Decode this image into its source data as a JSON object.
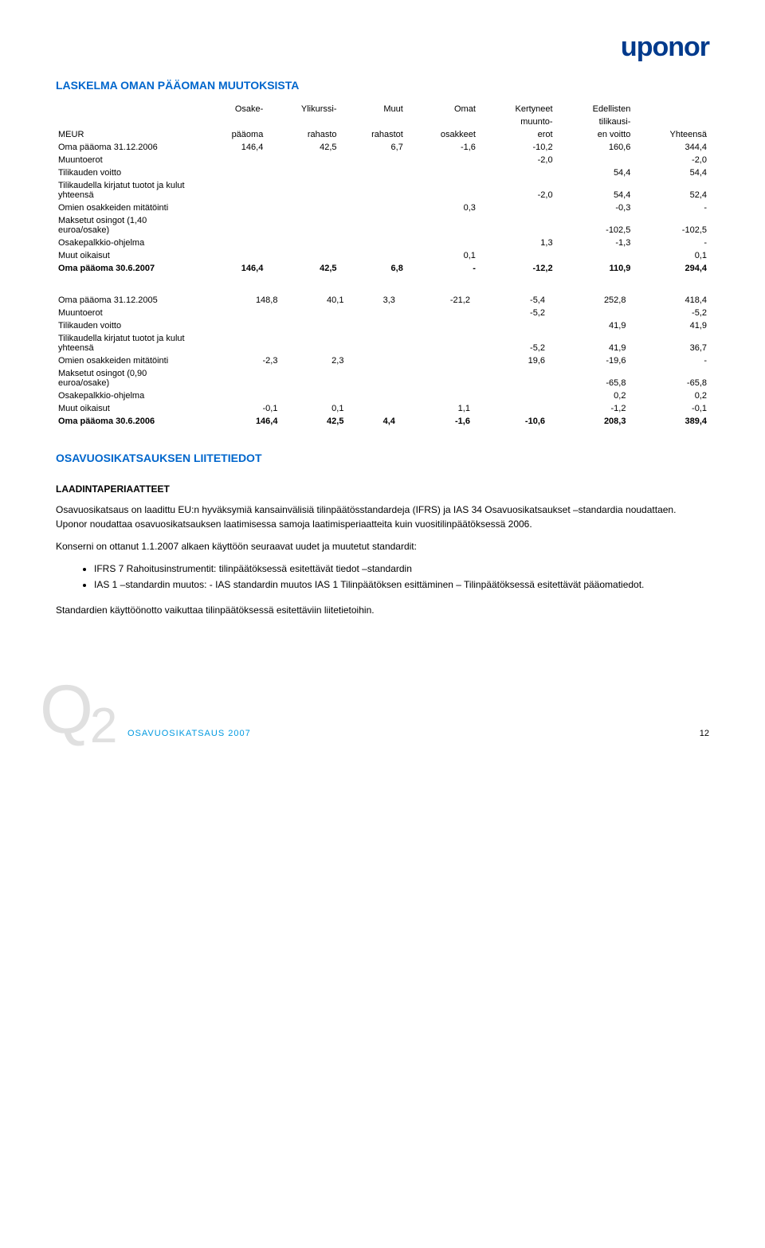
{
  "logo": "uponor",
  "title1": "LASKELMA OMAN PÄÄOMAN MUUTOKSISTA",
  "table1": {
    "headers": {
      "c0": "MEUR",
      "c1a": "Osake-",
      "c1b": "pääoma",
      "c2a": "Ylikurssi-",
      "c2b": "rahasto",
      "c3a": "Muut",
      "c3b": "rahastot",
      "c4a": "Omat",
      "c4b": "osakkeet",
      "c5a": "Kertyneet",
      "c5b": "muunto-",
      "c5c": "erot",
      "c6a": "Edellisten",
      "c6b": "tilikausi-",
      "c6c": "en voitto",
      "c7": "Yhteensä"
    },
    "rows": [
      {
        "label": "Oma pääoma 31.12.2006",
        "c": [
          "146,4",
          "42,5",
          "6,7",
          "-1,6",
          "-10,2",
          "160,6",
          "344,4"
        ]
      },
      {
        "label": "Muuntoerot",
        "c": [
          "",
          "",
          "",
          "",
          "-2,0",
          "",
          "-2,0"
        ]
      },
      {
        "label": "Tilikauden voitto",
        "c": [
          "",
          "",
          "",
          "",
          "",
          "54,4",
          "54,4"
        ]
      },
      {
        "label": "Tilikaudella kirjatut tuotot ja kulut yhteensä",
        "c": [
          "",
          "",
          "",
          "",
          "-2,0",
          "54,4",
          "52,4"
        ]
      },
      {
        "label": "Omien osakkeiden mitätöinti",
        "c": [
          "",
          "",
          "",
          "0,3",
          "",
          "-0,3",
          "-"
        ]
      },
      {
        "label": "Maksetut osingot (1,40 euroa/osake)",
        "c": [
          "",
          "",
          "",
          "",
          "",
          "-102,5",
          "-102,5"
        ]
      },
      {
        "label": "Osakepalkkio-ohjelma",
        "c": [
          "",
          "",
          "",
          "",
          "1,3",
          "-1,3",
          "-"
        ]
      },
      {
        "label": "Muut oikaisut",
        "c": [
          "",
          "",
          "",
          "0,1",
          "",
          "",
          "0,1"
        ]
      },
      {
        "label": "Oma pääoma 30.6.2007",
        "c": [
          "146,4",
          "42,5",
          "6,8",
          "-",
          "-12,2",
          "110,9",
          "294,4"
        ],
        "bold": true
      }
    ]
  },
  "table2": {
    "rows": [
      {
        "label": "Oma pääoma 31.12.2005",
        "c": [
          "148,8",
          "40,1",
          "3,3",
          "-21,2",
          "-5,4",
          "252,8",
          "418,4"
        ]
      },
      {
        "label": "Muuntoerot",
        "c": [
          "",
          "",
          "",
          "",
          "-5,2",
          "",
          "-5,2"
        ]
      },
      {
        "label": "Tilikauden voitto",
        "c": [
          "",
          "",
          "",
          "",
          "",
          "41,9",
          "41,9"
        ]
      },
      {
        "label": "Tilikaudella kirjatut tuotot ja kulut yhteensä",
        "c": [
          "",
          "",
          "",
          "",
          "-5,2",
          "41,9",
          "36,7"
        ]
      },
      {
        "label": "Omien osakkeiden mitätöinti",
        "c": [
          "-2,3",
          "2,3",
          "",
          "",
          "19,6",
          "-19,6",
          "-"
        ]
      },
      {
        "label": "Maksetut osingot (0,90 euroa/osake)",
        "c": [
          "",
          "",
          "",
          "",
          "",
          "-65,8",
          "-65,8"
        ]
      },
      {
        "label": "Osakepalkkio-ohjelma",
        "c": [
          "",
          "",
          "",
          "",
          "",
          "0,2",
          "0,2"
        ]
      },
      {
        "label": "Muut oikaisut",
        "c": [
          "-0,1",
          "0,1",
          "",
          "1,1",
          "",
          "-1,2",
          "-0,1"
        ]
      },
      {
        "label": "Oma pääoma 30.6.2006",
        "c": [
          "146,4",
          "42,5",
          "4,4",
          "-1,6",
          "-10,6",
          "208,3",
          "389,4"
        ],
        "bold": true
      }
    ]
  },
  "title2": "OSAVUOSIKATSAUKSEN LIITETIEDOT",
  "subTitle1": "LAADINTAPERIAATTEET",
  "p1": "Osavuosikatsaus on laadittu EU:n hyväksymiä kansainvälisiä tilinpäätösstandardeja (IFRS) ja IAS 34 Osavuosikatsaukset –standardia noudattaen. Uponor noudattaa osavuosikatsauksen laatimisessa samoja laatimisperiaatteita kuin vuositilinpäätöksessä 2006.",
  "p2": "Konserni on ottanut 1.1.2007 alkaen käyttöön seuraavat uudet ja muutetut standardit:",
  "li1": "IFRS 7 Rahoitusinstrumentit: tilinpäätöksessä esitettävät tiedot –standardin",
  "li2": "IAS 1 –standardin muutos: - IAS standardin muutos IAS 1 Tilinpäätöksen esittäminen – Tilinpäätöksessä esitettävät pääomatiedot.",
  "p3": "Standardien käyttöönotto vaikuttaa tilinpäätöksessä esitettäviin liitetietoihin.",
  "footer": {
    "text": "OSAVUOSIKATSAUS 2007",
    "page": "12"
  },
  "colors": {
    "blue": "#0066cc",
    "logoBlue": "#003a8c",
    "lightBlue": "#0099e0",
    "gray": "#e0e0e0"
  }
}
